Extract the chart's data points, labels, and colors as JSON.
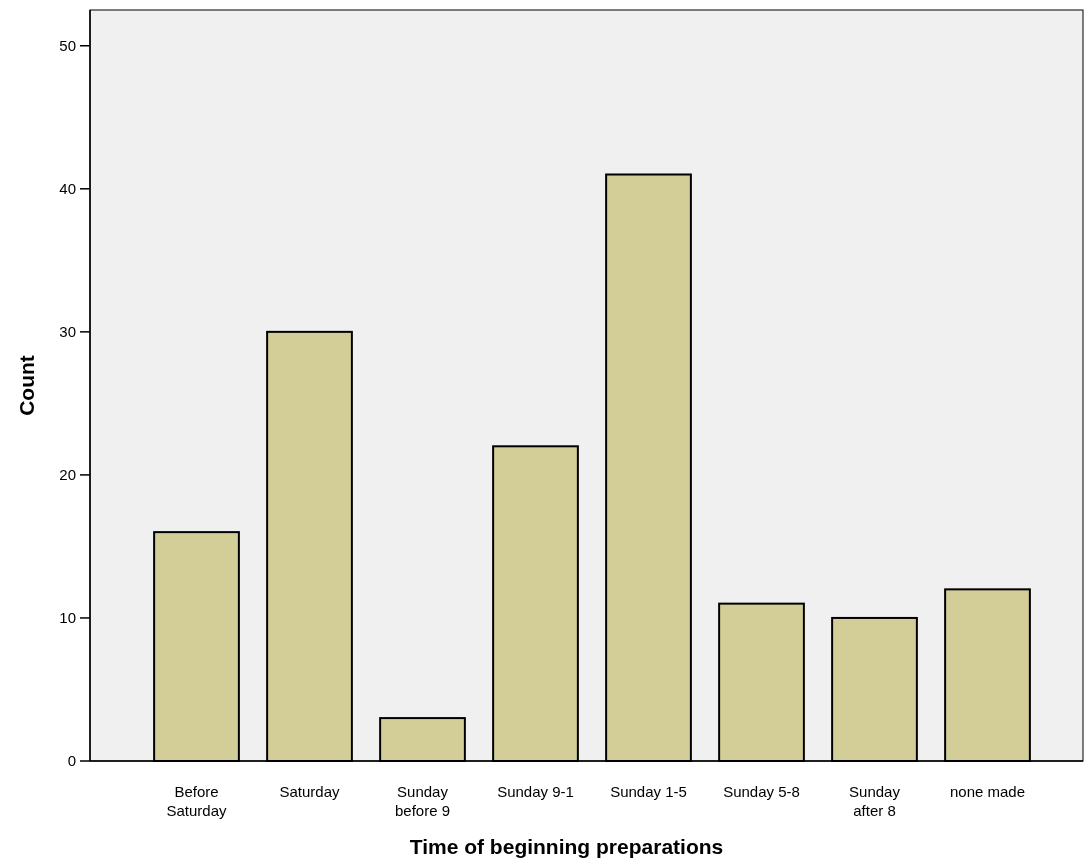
{
  "chart_data": {
    "type": "bar",
    "xlabel": "Time of beginning preparations",
    "ylabel": "Count",
    "categories": [
      "Before Saturday",
      "Saturday",
      "Sunday before 9",
      "Sunday 9-1",
      "Sunday 1-5",
      "Sunday 5-8",
      "Sunday after 8",
      "none made"
    ],
    "values": [
      16,
      30,
      3,
      22,
      41,
      11,
      10,
      12
    ],
    "color": "#d3ce97",
    "ylim": [
      0,
      52.5
    ],
    "yticks": [
      0,
      10,
      20,
      30,
      40,
      50
    ],
    "grid": false
  }
}
